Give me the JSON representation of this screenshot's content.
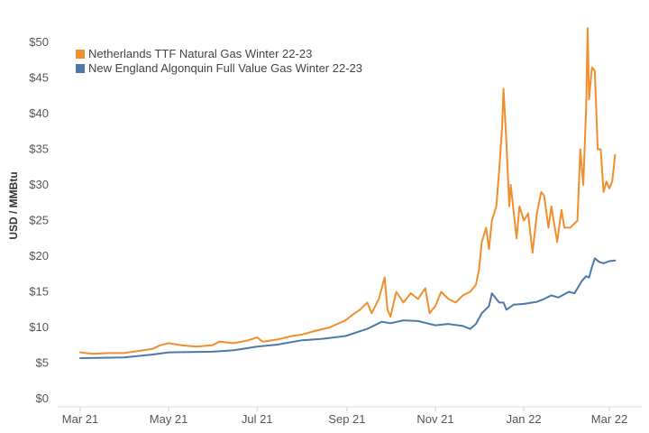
{
  "chart_data": {
    "type": "line",
    "title": "",
    "xlabel": "",
    "ylabel": "USD / MMBtu",
    "ylim": [
      0,
      52
    ],
    "y_ticks": [
      {
        "value": 0,
        "label": "$0"
      },
      {
        "value": 5,
        "label": "$5"
      },
      {
        "value": 10,
        "label": "$10"
      },
      {
        "value": 15,
        "label": "$15"
      },
      {
        "value": 20,
        "label": "$20"
      },
      {
        "value": 25,
        "label": "$25"
      },
      {
        "value": 30,
        "label": "$30"
      },
      {
        "value": 35,
        "label": "$35"
      },
      {
        "value": 40,
        "label": "$40"
      },
      {
        "value": 45,
        "label": "$45"
      },
      {
        "value": 50,
        "label": "$50"
      }
    ],
    "x_range": [
      "2021-03-01",
      "2022-03-08"
    ],
    "x_ticks": [
      {
        "date": "2021-03-01",
        "label": "Mar 21"
      },
      {
        "date": "2021-05-01",
        "label": "May 21"
      },
      {
        "date": "2021-07-01",
        "label": "Jul 21"
      },
      {
        "date": "2021-09-01",
        "label": "Sep 21"
      },
      {
        "date": "2021-11-01",
        "label": "Nov 21"
      },
      {
        "date": "2022-01-01",
        "label": "Jan 22"
      },
      {
        "date": "2022-03-01",
        "label": "Mar 22"
      }
    ],
    "grid": false,
    "legend_position": "top-left",
    "series": [
      {
        "name": "Netherlands TTF Natural Gas Winter 22-23",
        "color": "#F28E2B",
        "points": [
          [
            "2021-03-01",
            6.5
          ],
          [
            "2021-03-10",
            6.3
          ],
          [
            "2021-03-20",
            6.4
          ],
          [
            "2021-03-31",
            6.4
          ],
          [
            "2021-04-10",
            6.7
          ],
          [
            "2021-04-20",
            7.0
          ],
          [
            "2021-04-25",
            7.5
          ],
          [
            "2021-05-01",
            7.8
          ],
          [
            "2021-05-10",
            7.5
          ],
          [
            "2021-05-20",
            7.3
          ],
          [
            "2021-05-31",
            7.5
          ],
          [
            "2021-06-05",
            8.0
          ],
          [
            "2021-06-15",
            7.8
          ],
          [
            "2021-06-25",
            8.2
          ],
          [
            "2021-07-01",
            8.6
          ],
          [
            "2021-07-05",
            8.0
          ],
          [
            "2021-07-15",
            8.3
          ],
          [
            "2021-07-25",
            8.8
          ],
          [
            "2021-08-01",
            9.0
          ],
          [
            "2021-08-10",
            9.5
          ],
          [
            "2021-08-20",
            10.0
          ],
          [
            "2021-08-31",
            11.0
          ],
          [
            "2021-09-05",
            11.8
          ],
          [
            "2021-09-10",
            12.5
          ],
          [
            "2021-09-15",
            13.5
          ],
          [
            "2021-09-18",
            12.0
          ],
          [
            "2021-09-23",
            14.0
          ],
          [
            "2021-09-27",
            17.0
          ],
          [
            "2021-09-29",
            12.5
          ],
          [
            "2021-10-01",
            11.5
          ],
          [
            "2021-10-05",
            15.0
          ],
          [
            "2021-10-10",
            13.5
          ],
          [
            "2021-10-15",
            14.8
          ],
          [
            "2021-10-20",
            14.0
          ],
          [
            "2021-10-25",
            15.5
          ],
          [
            "2021-10-28",
            12.0
          ],
          [
            "2021-11-01",
            13.0
          ],
          [
            "2021-11-05",
            15.0
          ],
          [
            "2021-11-10",
            14.0
          ],
          [
            "2021-11-15",
            13.5
          ],
          [
            "2021-11-20",
            14.5
          ],
          [
            "2021-11-25",
            15.0
          ],
          [
            "2021-11-29",
            16.0
          ],
          [
            "2021-12-01",
            18.0
          ],
          [
            "2021-12-03",
            22.0
          ],
          [
            "2021-12-06",
            24.0
          ],
          [
            "2021-12-08",
            21.0
          ],
          [
            "2021-12-10",
            25.0
          ],
          [
            "2021-12-13",
            27.0
          ],
          [
            "2021-12-15",
            32.0
          ],
          [
            "2021-12-17",
            38.0
          ],
          [
            "2021-12-18",
            43.5
          ],
          [
            "2021-12-20",
            36.0
          ],
          [
            "2021-12-22",
            27.0
          ],
          [
            "2021-12-23",
            30.0
          ],
          [
            "2021-12-27",
            22.5
          ],
          [
            "2021-12-29",
            27.0
          ],
          [
            "2022-01-01",
            25.0
          ],
          [
            "2022-01-04",
            26.0
          ],
          [
            "2022-01-07",
            20.5
          ],
          [
            "2022-01-10",
            26.0
          ],
          [
            "2022-01-13",
            29.0
          ],
          [
            "2022-01-15",
            28.5
          ],
          [
            "2022-01-18",
            24.0
          ],
          [
            "2022-01-20",
            27.0
          ],
          [
            "2022-01-24",
            22.0
          ],
          [
            "2022-01-27",
            26.5
          ],
          [
            "2022-01-29",
            24.0
          ],
          [
            "2022-02-02",
            24.0
          ],
          [
            "2022-02-07",
            25.0
          ],
          [
            "2022-02-09",
            35.0
          ],
          [
            "2022-02-11",
            30.0
          ],
          [
            "2022-02-13",
            41.0
          ],
          [
            "2022-02-14",
            52.0
          ],
          [
            "2022-02-15",
            42.0
          ],
          [
            "2022-02-17",
            46.5
          ],
          [
            "2022-02-19",
            46.0
          ],
          [
            "2022-02-21",
            35.0
          ],
          [
            "2022-02-23",
            35.0
          ],
          [
            "2022-02-25",
            29.0
          ],
          [
            "2022-02-27",
            30.5
          ],
          [
            "2022-03-01",
            29.5
          ],
          [
            "2022-03-03",
            30.5
          ],
          [
            "2022-03-05",
            34.2
          ]
        ]
      },
      {
        "name": "New England Algonquin Full Value Gas Winter 22-23",
        "color": "#4E79A7",
        "points": [
          [
            "2021-03-01",
            5.7
          ],
          [
            "2021-03-31",
            5.8
          ],
          [
            "2021-04-20",
            6.2
          ],
          [
            "2021-05-01",
            6.5
          ],
          [
            "2021-05-31",
            6.6
          ],
          [
            "2021-06-15",
            6.8
          ],
          [
            "2021-07-01",
            7.3
          ],
          [
            "2021-07-15",
            7.6
          ],
          [
            "2021-08-01",
            8.2
          ],
          [
            "2021-08-15",
            8.4
          ],
          [
            "2021-08-31",
            8.8
          ],
          [
            "2021-09-15",
            9.8
          ],
          [
            "2021-09-25",
            10.8
          ],
          [
            "2021-10-01",
            10.6
          ],
          [
            "2021-10-10",
            11.0
          ],
          [
            "2021-10-20",
            10.9
          ],
          [
            "2021-11-01",
            10.3
          ],
          [
            "2021-11-10",
            10.5
          ],
          [
            "2021-11-20",
            10.2
          ],
          [
            "2021-11-25",
            9.8
          ],
          [
            "2021-11-29",
            10.5
          ],
          [
            "2021-12-03",
            12.0
          ],
          [
            "2021-12-08",
            13.0
          ],
          [
            "2021-12-10",
            14.8
          ],
          [
            "2021-12-15",
            13.5
          ],
          [
            "2021-12-18",
            13.5
          ],
          [
            "2021-12-20",
            12.5
          ],
          [
            "2021-12-25",
            13.2
          ],
          [
            "2022-01-01",
            13.3
          ],
          [
            "2022-01-10",
            13.6
          ],
          [
            "2022-01-15",
            14.0
          ],
          [
            "2022-01-20",
            14.5
          ],
          [
            "2022-01-25",
            14.2
          ],
          [
            "2022-02-01",
            15.0
          ],
          [
            "2022-02-05",
            14.8
          ],
          [
            "2022-02-10",
            16.5
          ],
          [
            "2022-02-13",
            17.2
          ],
          [
            "2022-02-15",
            17.0
          ],
          [
            "2022-02-17",
            18.5
          ],
          [
            "2022-02-19",
            19.7
          ],
          [
            "2022-02-22",
            19.2
          ],
          [
            "2022-02-25",
            19.0
          ],
          [
            "2022-03-01",
            19.3
          ],
          [
            "2022-03-05",
            19.4
          ]
        ]
      }
    ]
  }
}
